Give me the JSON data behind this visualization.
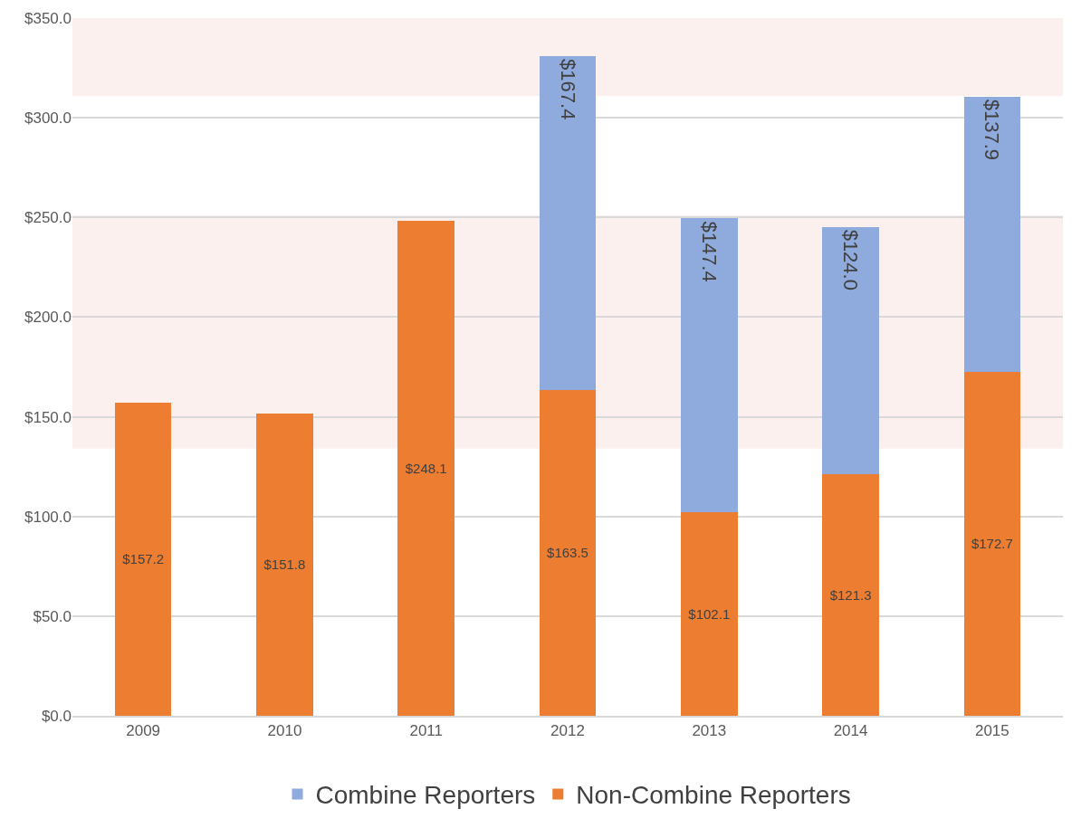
{
  "chart_data": {
    "type": "bar",
    "stacked": true,
    "categories": [
      "2009",
      "2010",
      "2011",
      "2012",
      "2013",
      "2014",
      "2015"
    ],
    "series": [
      {
        "name": "Non-Combine Reporters",
        "color": "#ed7d31",
        "values": [
          157.2,
          151.8,
          248.1,
          163.5,
          102.1,
          121.3,
          172.7
        ],
        "value_labels": [
          "$157.2",
          "$151.8",
          "$248.1",
          "$163.5",
          "$102.1",
          "$121.3",
          "$172.7"
        ]
      },
      {
        "name": "Combine Reporters",
        "color": "#8faadc",
        "values": [
          null,
          null,
          null,
          167.4,
          147.4,
          124.0,
          137.9
        ],
        "value_labels": [
          null,
          null,
          null,
          "$167.4",
          "$147.4",
          "$124.0",
          "$137.9"
        ]
      }
    ],
    "ylim": [
      0,
      350
    ],
    "yticks": [
      {
        "value": 0,
        "label": "$0.0"
      },
      {
        "value": 50,
        "label": "$50.0"
      },
      {
        "value": 100,
        "label": "$100.0"
      },
      {
        "value": 150,
        "label": "$150.0"
      },
      {
        "value": 200,
        "label": "$200.0"
      },
      {
        "value": 250,
        "label": "$250.0"
      },
      {
        "value": 300,
        "label": "$300.0"
      },
      {
        "value": 350,
        "label": "$350.0"
      }
    ],
    "bands": [
      {
        "axis": "y",
        "from": 311,
        "to": 350,
        "color": "#fbf0ee"
      },
      {
        "axis": "y",
        "from": 134,
        "to": 251,
        "color": "#fbf0ee"
      }
    ],
    "grid": "y",
    "legend": "bottom"
  }
}
